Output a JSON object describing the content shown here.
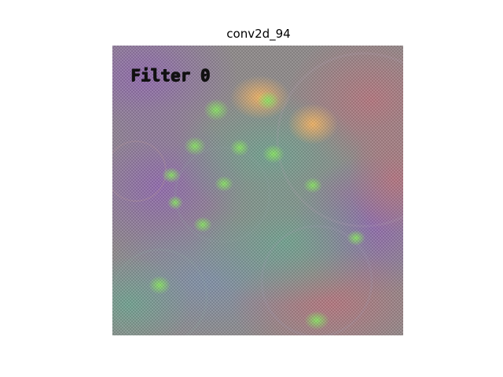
{
  "title": "conv2d_94",
  "overlay_label": "Filter 0",
  "colors": {
    "base_gray": "#8a8a88",
    "purple": "#8f6fa0",
    "rose": "#a7777c",
    "orange": "#e0a060",
    "green": "#7fcc5f",
    "teal": "#6e9a8e",
    "blue_gray": "#7c8aa0"
  }
}
